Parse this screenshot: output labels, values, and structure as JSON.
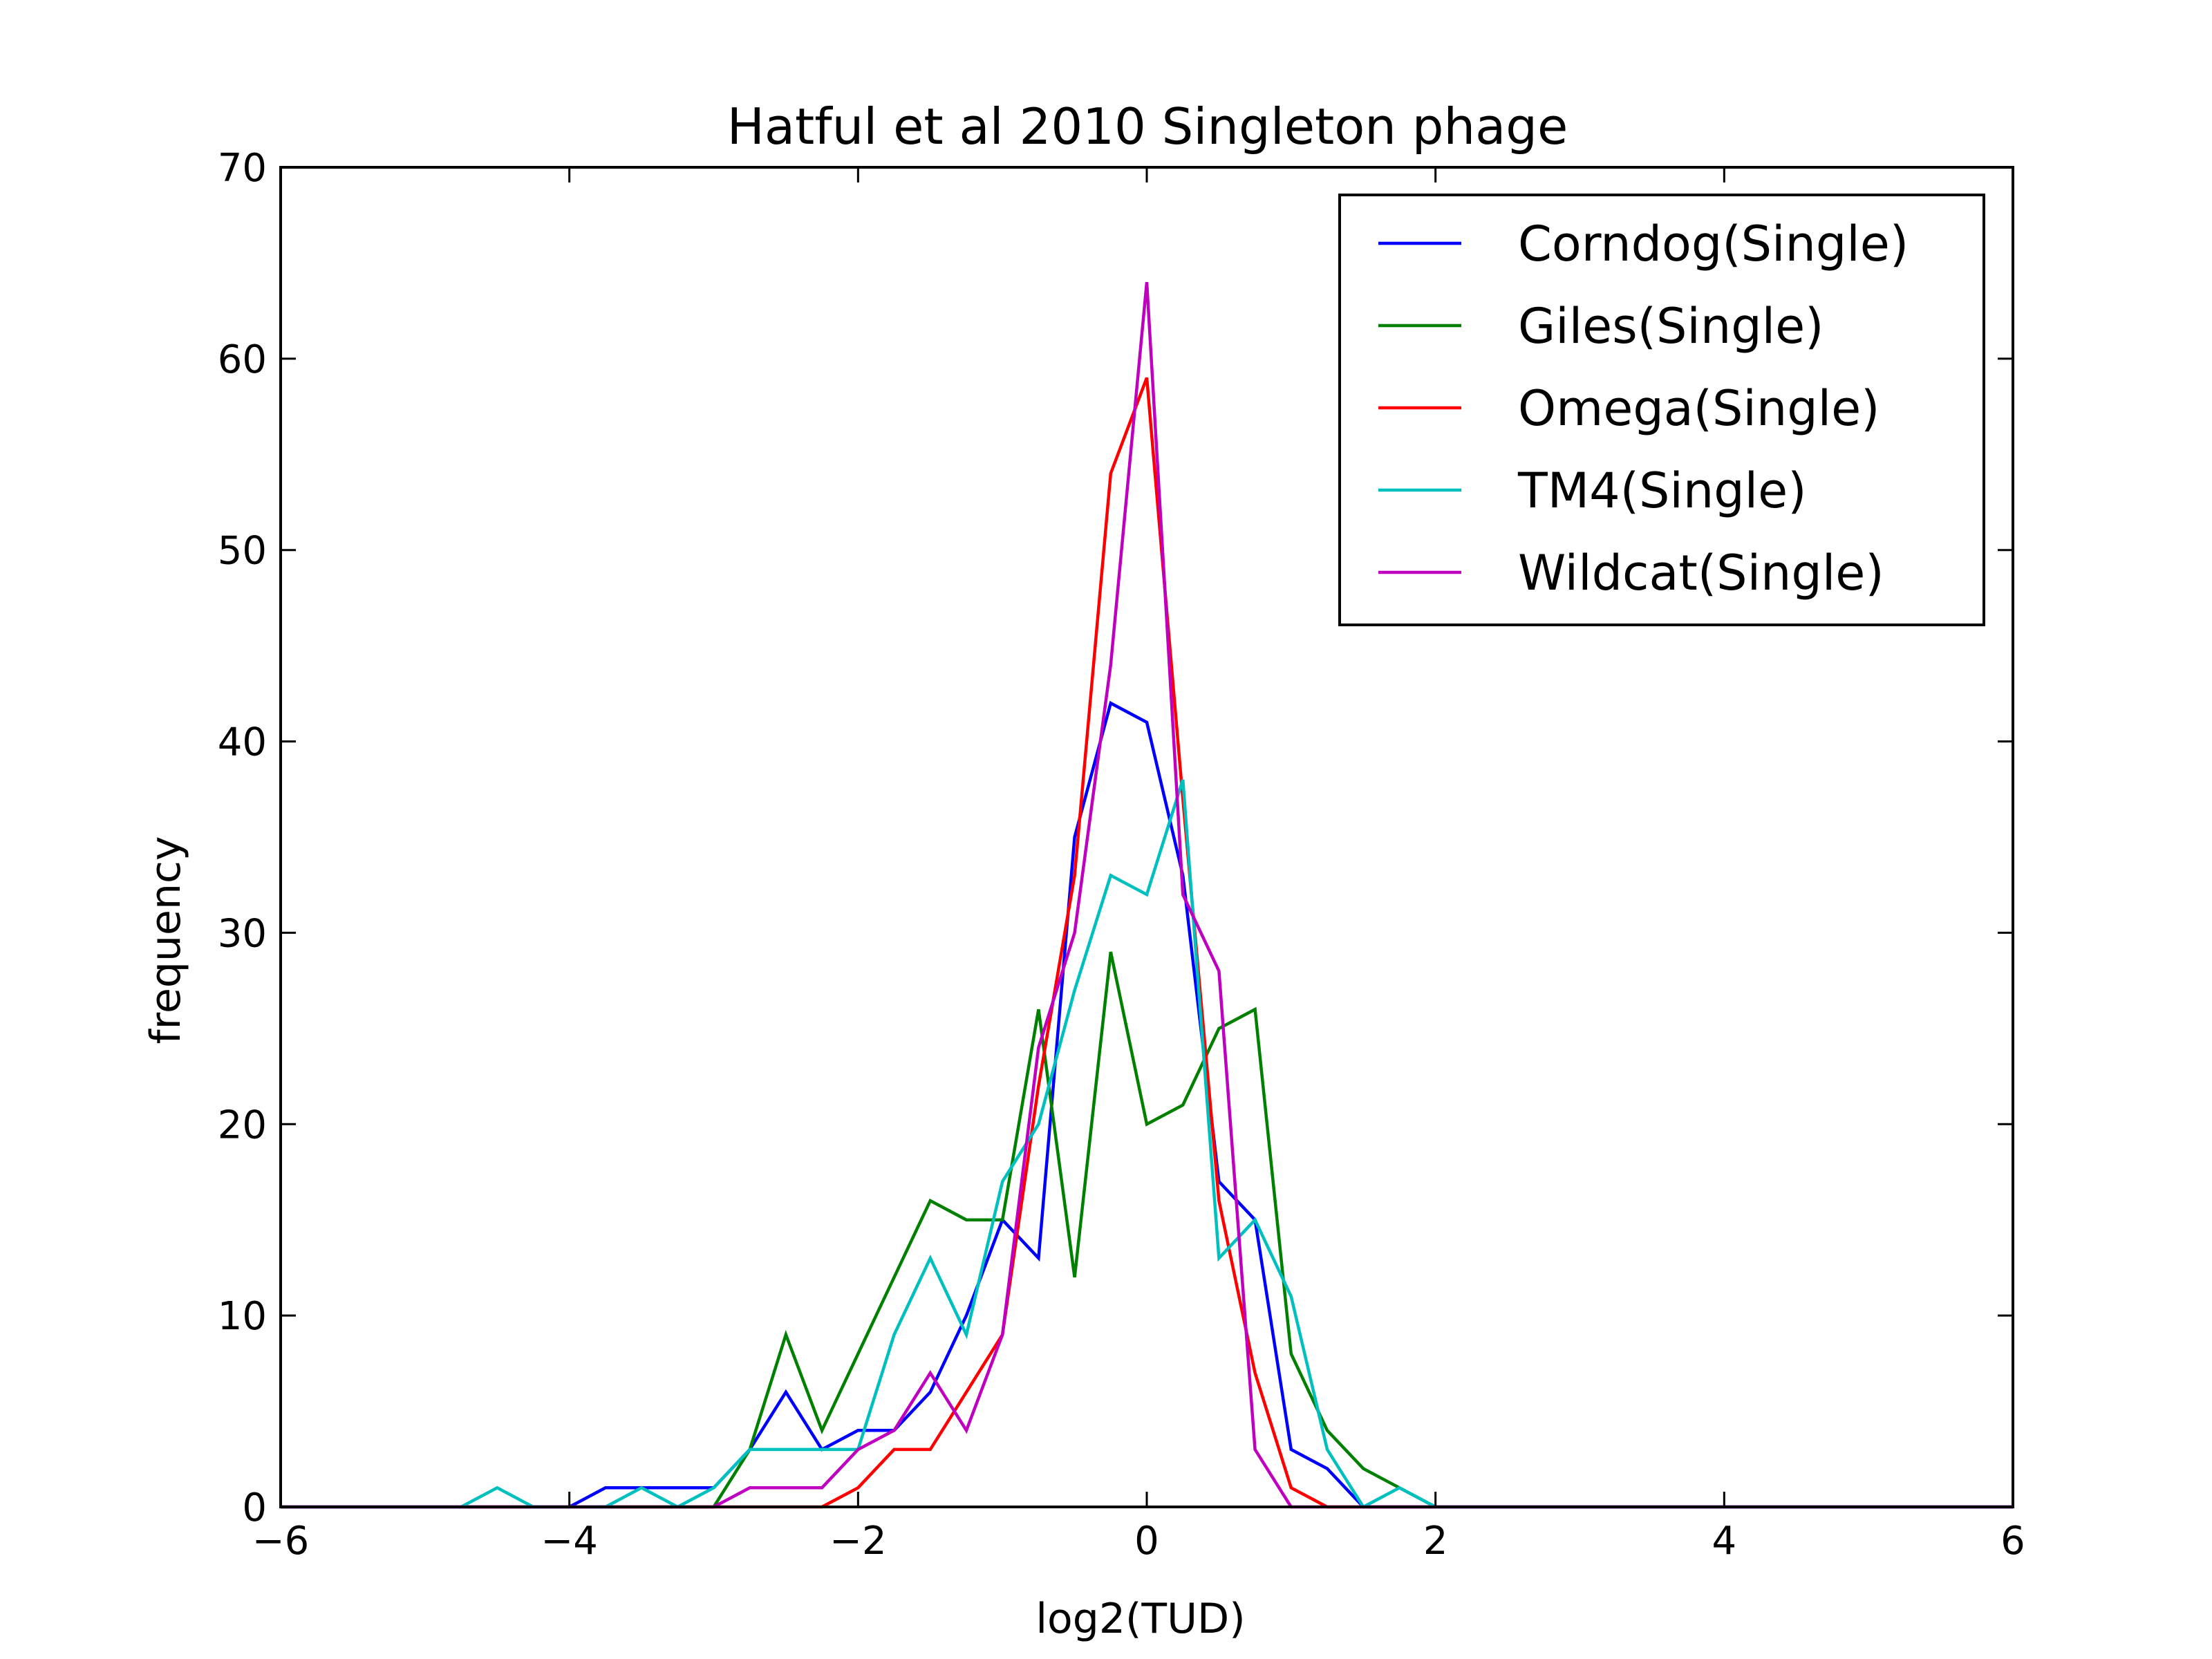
{
  "chart_data": {
    "type": "line",
    "title": "Hatful et al 2010 Singleton phage",
    "xlabel": "log2(TUD)",
    "ylabel": "frequency",
    "xlim": [
      -6,
      6
    ],
    "ylim": [
      0,
      70
    ],
    "xticks": [
      -6,
      -4,
      -2,
      0,
      2,
      4,
      6
    ],
    "xtick_labels": [
      "−6",
      "−4",
      "−2",
      "0",
      "2",
      "4",
      "6"
    ],
    "yticks": [
      0,
      10,
      20,
      30,
      40,
      50,
      60,
      70
    ],
    "ytick_labels": [
      "0",
      "10",
      "20",
      "30",
      "40",
      "50",
      "60",
      "70"
    ],
    "grid": false,
    "legend_position": "upper right",
    "series": [
      {
        "name": "Corndog(Single)",
        "color": "#0000ff",
        "x": [
          -6,
          -5.75,
          -5.5,
          -5.25,
          -5,
          -4.75,
          -4.5,
          -4.25,
          -4,
          -3.75,
          -3.5,
          -3.25,
          -3,
          -2.75,
          -2.5,
          -2.25,
          -2,
          -1.75,
          -1.5,
          -1.25,
          -1,
          -0.75,
          -0.5,
          -0.25,
          0,
          0.25,
          0.5,
          0.75,
          1,
          1.25,
          1.5,
          1.75,
          2,
          2.25,
          2.5,
          2.75,
          3,
          3.25,
          3.5,
          3.75,
          4,
          4.25,
          4.5,
          4.75,
          5,
          5.25,
          5.5,
          5.75,
          6
        ],
        "y": [
          0,
          0,
          0,
          0,
          0,
          0,
          0,
          0,
          0,
          1,
          1,
          1,
          1,
          3,
          6,
          3,
          4,
          4,
          6,
          10,
          15,
          13,
          35,
          42,
          41,
          33,
          17,
          15,
          3,
          2,
          0,
          0,
          0,
          0,
          0,
          0,
          0,
          0,
          0,
          0,
          0,
          0,
          0,
          0,
          0,
          0,
          0,
          0,
          0
        ]
      },
      {
        "name": "Giles(Single)",
        "color": "#008000",
        "x": [
          -6,
          -5.75,
          -5.5,
          -5.25,
          -5,
          -4.75,
          -4.5,
          -4.25,
          -4,
          -3.75,
          -3.5,
          -3.25,
          -3,
          -2.75,
          -2.5,
          -2.25,
          -2,
          -1.75,
          -1.5,
          -1.25,
          -1,
          -0.75,
          -0.5,
          -0.25,
          0,
          0.25,
          0.5,
          0.75,
          1,
          1.25,
          1.5,
          1.75,
          2,
          2.25,
          2.5,
          2.75,
          3,
          3.25,
          3.5,
          3.75,
          4,
          4.25,
          4.5,
          4.75,
          5,
          5.25,
          5.5,
          5.75,
          6
        ],
        "y": [
          0,
          0,
          0,
          0,
          0,
          0,
          0,
          0,
          0,
          0,
          0,
          0,
          0,
          3,
          9,
          4,
          8,
          12,
          16,
          15,
          15,
          26,
          12,
          29,
          20,
          21,
          25,
          26,
          8,
          4,
          2,
          1,
          0,
          0,
          0,
          0,
          0,
          0,
          0,
          0,
          0,
          0,
          0,
          0,
          0,
          0,
          0,
          0,
          0
        ]
      },
      {
        "name": "Omega(Single)",
        "color": "#ff0000",
        "x": [
          -6,
          -5.75,
          -5.5,
          -5.25,
          -5,
          -4.75,
          -4.5,
          -4.25,
          -4,
          -3.75,
          -3.5,
          -3.25,
          -3,
          -2.75,
          -2.5,
          -2.25,
          -2,
          -1.75,
          -1.5,
          -1.25,
          -1,
          -0.75,
          -0.5,
          -0.25,
          0,
          0.25,
          0.5,
          0.75,
          1,
          1.25,
          1.5,
          1.75,
          2,
          2.25,
          2.5,
          2.75,
          3,
          3.25,
          3.5,
          3.75,
          4,
          4.25,
          4.5,
          4.75,
          5,
          5.25,
          5.5,
          5.75,
          6
        ],
        "y": [
          0,
          0,
          0,
          0,
          0,
          0,
          0,
          0,
          0,
          0,
          0,
          0,
          0,
          0,
          0,
          0,
          1,
          3,
          3,
          6,
          9,
          22,
          33,
          54,
          59,
          37,
          16,
          7,
          1,
          0,
          0,
          0,
          0,
          0,
          0,
          0,
          0,
          0,
          0,
          0,
          0,
          0,
          0,
          0,
          0,
          0,
          0,
          0,
          0
        ]
      },
      {
        "name": "TM4(Single)",
        "color": "#00bfbf",
        "x": [
          -6,
          -5.75,
          -5.5,
          -5.25,
          -5,
          -4.75,
          -4.5,
          -4.25,
          -4,
          -3.75,
          -3.5,
          -3.25,
          -3,
          -2.75,
          -2.5,
          -2.25,
          -2,
          -1.75,
          -1.5,
          -1.25,
          -1,
          -0.75,
          -0.5,
          -0.25,
          0,
          0.25,
          0.5,
          0.75,
          1,
          1.25,
          1.5,
          1.75,
          2,
          2.25,
          2.5,
          2.75,
          3,
          3.25,
          3.5,
          3.75,
          4,
          4.25,
          4.5,
          4.75,
          5,
          5.25,
          5.5,
          5.75,
          6
        ],
        "y": [
          0,
          0,
          0,
          0,
          0,
          0,
          1,
          0,
          0,
          0,
          1,
          0,
          1,
          3,
          3,
          3,
          3,
          9,
          13,
          9,
          17,
          20,
          27,
          33,
          32,
          38,
          13,
          15,
          11,
          3,
          0,
          1,
          0,
          0,
          0,
          0,
          0,
          0,
          0,
          0,
          0,
          0,
          0,
          0,
          0,
          0,
          0,
          0,
          0
        ]
      },
      {
        "name": "Wildcat(Single)",
        "color": "#bf00bf",
        "x": [
          -6,
          -5.75,
          -5.5,
          -5.25,
          -5,
          -4.75,
          -4.5,
          -4.25,
          -4,
          -3.75,
          -3.5,
          -3.25,
          -3,
          -2.75,
          -2.5,
          -2.25,
          -2,
          -1.75,
          -1.5,
          -1.25,
          -1,
          -0.75,
          -0.5,
          -0.25,
          0,
          0.25,
          0.5,
          0.75,
          1,
          1.25,
          1.5,
          1.75,
          2,
          2.25,
          2.5,
          2.75,
          3,
          3.25,
          3.5,
          3.75,
          4,
          4.25,
          4.5,
          4.75,
          5,
          5.25,
          5.5,
          5.75,
          6
        ],
        "y": [
          0,
          0,
          0,
          0,
          0,
          0,
          0,
          0,
          0,
          0,
          0,
          0,
          0,
          1,
          1,
          1,
          3,
          4,
          7,
          4,
          9,
          24,
          30,
          44,
          64,
          32,
          28,
          3,
          0,
          0,
          0,
          0,
          0,
          0,
          0,
          0,
          0,
          0,
          0,
          0,
          0,
          0,
          0,
          0,
          0,
          0,
          0,
          0,
          0
        ]
      }
    ]
  }
}
